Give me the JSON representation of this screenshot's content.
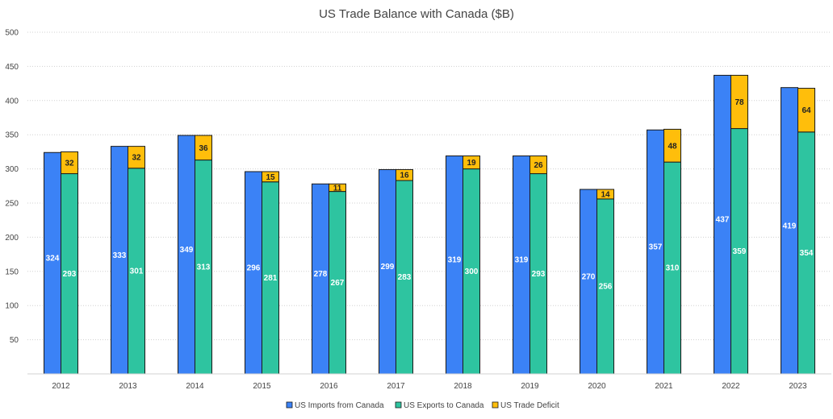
{
  "chart_data": {
    "type": "bar",
    "title": "US Trade Balance with Canada ($B)",
    "xlabel": "",
    "ylabel": "",
    "ylim": [
      0,
      500
    ],
    "yticks": [
      50,
      100,
      150,
      200,
      250,
      300,
      350,
      400,
      450,
      500
    ],
    "grid": true,
    "legend_position": "bottom",
    "categories": [
      "2012",
      "2013",
      "2014",
      "2015",
      "2016",
      "2017",
      "2018",
      "2019",
      "2020",
      "2021",
      "2022",
      "2023"
    ],
    "series": [
      {
        "name": "US Imports from Canada",
        "color": "#3b82f6",
        "stack": "imports",
        "label_color": "#ffffff",
        "values": [
          324,
          333,
          349,
          296,
          278,
          299,
          319,
          319,
          270,
          357,
          437,
          419
        ]
      },
      {
        "name": "US Exports to Canada",
        "color": "#2ec4a0",
        "stack": "exports",
        "label_color": "#ffffff",
        "values": [
          293,
          301,
          313,
          281,
          267,
          283,
          300,
          293,
          256,
          310,
          359,
          354
        ]
      },
      {
        "name": "US Trade Deficit",
        "color": "#ffbe0b",
        "stack": "exports",
        "label_color": "#222222",
        "values": [
          32,
          32,
          36,
          15,
          11,
          16,
          19,
          26,
          14,
          48,
          78,
          64
        ]
      }
    ]
  }
}
